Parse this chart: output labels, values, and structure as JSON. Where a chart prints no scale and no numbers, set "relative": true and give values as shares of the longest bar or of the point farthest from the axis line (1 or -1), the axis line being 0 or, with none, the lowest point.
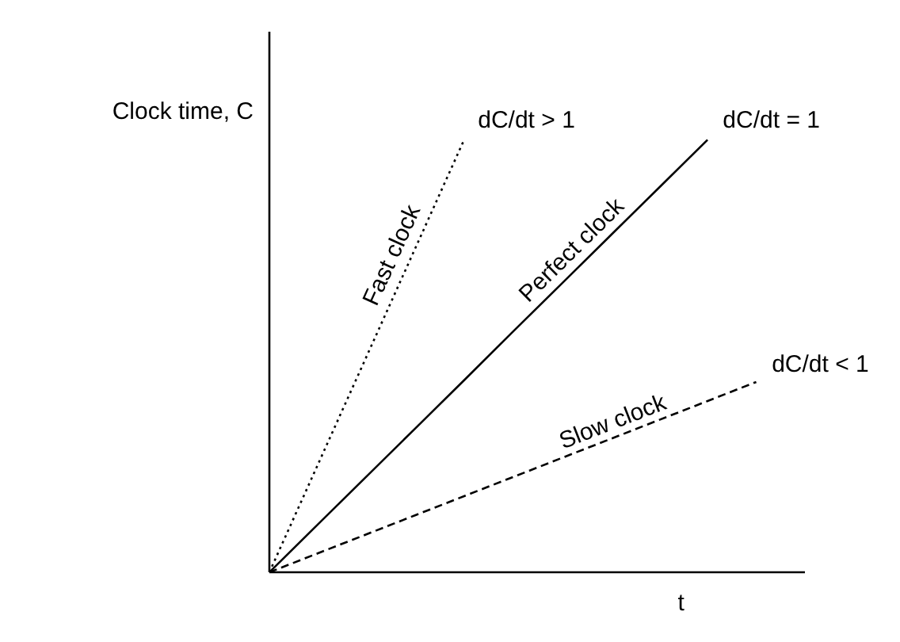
{
  "chart_data": {
    "type": "line",
    "relative": true,
    "xlabel": "t",
    "ylabel": "Clock time, C",
    "categories": [
      null,
      null,
      null,
      null,
      null,
      null,
      null,
      null,
      null,
      null,
      null,
      null
    ],
    "series": [
      {
        "name": "Fast clock",
        "color": "#000000",
        "line_style": "dotted",
        "values": [
          0,
          0.25,
          0.5,
          0.75,
          1,
          null,
          null,
          null,
          null,
          null,
          null,
          null
        ]
      },
      {
        "name": "Perfect clock",
        "color": "#000000",
        "line_style": "solid",
        "values": [
          0,
          0.111,
          0.222,
          0.333,
          0.444,
          0.556,
          0.667,
          0.778,
          0.889,
          1,
          null,
          null
        ]
      },
      {
        "name": "Slow clock",
        "color": "#000000",
        "line_style": "dashed",
        "values": [
          0,
          0.044,
          0.088,
          0.132,
          0.176,
          0.22,
          0.264,
          0.308,
          0.352,
          0.396,
          0.44,
          null
        ]
      }
    ],
    "annotations": [
      "dC/dt > 1",
      "dC/dt = 1",
      "dC/dt < 1"
    ]
  }
}
